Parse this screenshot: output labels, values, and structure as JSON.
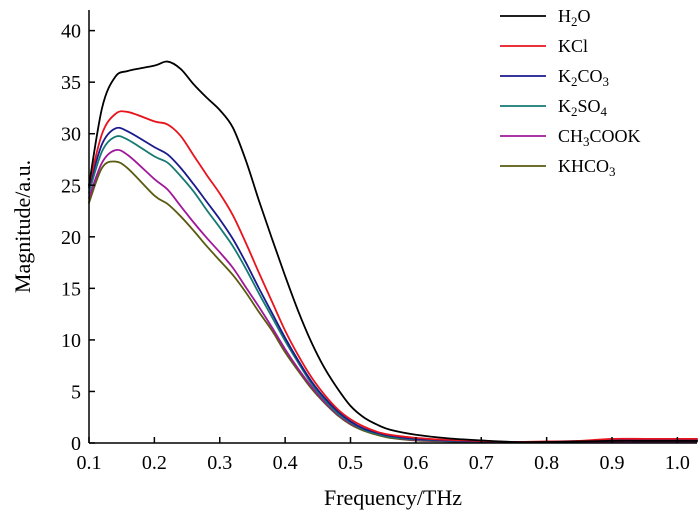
{
  "chart_data": {
    "type": "line",
    "title": "",
    "xlabel": "Frequency/THz",
    "ylabel": "Magnitude/a.u.",
    "xlim": [
      0.1,
      1.03
    ],
    "ylim": [
      0,
      42
    ],
    "xticks": [
      0.1,
      0.2,
      0.3,
      0.4,
      0.5,
      0.6,
      0.7,
      0.8,
      0.9,
      1.0
    ],
    "yticks": [
      0,
      5,
      10,
      15,
      20,
      25,
      30,
      35,
      40
    ],
    "xtick_labels": [
      "0.1",
      "0.2",
      "0.3",
      "0.4",
      "0.5",
      "0.6",
      "0.7",
      "0.8",
      "0.9",
      "1.0"
    ],
    "ytick_labels": [
      "0",
      "5",
      "10",
      "15",
      "20",
      "25",
      "30",
      "35",
      "40"
    ],
    "grid": false,
    "legend_position": "top-right",
    "x": [
      0.1,
      0.12,
      0.14,
      0.16,
      0.2,
      0.22,
      0.24,
      0.26,
      0.28,
      0.3,
      0.32,
      0.34,
      0.36,
      0.38,
      0.4,
      0.42,
      0.44,
      0.46,
      0.48,
      0.5,
      0.52,
      0.54,
      0.56,
      0.6,
      0.65,
      0.7,
      0.75,
      0.8,
      0.85,
      0.9,
      0.95,
      1.0,
      1.03
    ],
    "series": [
      {
        "name": "H2O",
        "legend": {
          "main": "H",
          "sub": "2",
          "rest": "O"
        },
        "color": "#000000",
        "values": [
          25,
          32.5,
          35.5,
          36.1,
          36.6,
          37,
          36.3,
          34.8,
          33.5,
          32.3,
          30.6,
          27.4,
          23.5,
          19.8,
          16.2,
          12.8,
          9.8,
          7.3,
          5.3,
          3.6,
          2.5,
          1.8,
          1.3,
          0.8,
          0.45,
          0.25,
          0.1,
          0.1,
          0.15,
          0.2,
          0.2,
          0.2,
          0.2
        ]
      },
      {
        "name": "KCl",
        "legend": {
          "main": "KCl",
          "sub": "",
          "rest": ""
        },
        "color": "#e8141c",
        "values": [
          25,
          30,
          31.9,
          32.1,
          31.2,
          30.9,
          29.8,
          27.9,
          26,
          24.2,
          22.1,
          19.4,
          16.5,
          13.7,
          10.9,
          8.5,
          6.4,
          4.7,
          3.3,
          2.3,
          1.6,
          1.1,
          0.8,
          0.5,
          0.3,
          0.2,
          0.1,
          0.15,
          0.2,
          0.4,
          0.4,
          0.4,
          0.4
        ]
      },
      {
        "name": "K2CO3",
        "legend": {
          "main": "K",
          "sub": "2",
          "rest": "CO",
          "sub2": "3"
        },
        "color": "#1a1a8c",
        "values": [
          24.8,
          29,
          30.5,
          30.2,
          28.7,
          28,
          26.7,
          25.1,
          23.4,
          21.7,
          19.8,
          17.5,
          15,
          12.6,
          10.2,
          8,
          6,
          4.4,
          3.1,
          2.1,
          1.4,
          1,
          0.7,
          0.4,
          0.25,
          0.15,
          0.1,
          0.12,
          0.18,
          0.3,
          0.3,
          0.3,
          0.3
        ]
      },
      {
        "name": "K2SO4",
        "legend": {
          "main": "K",
          "sub": "2",
          "rest": "SO",
          "sub2": "4"
        },
        "color": "#167a72",
        "values": [
          24.3,
          28.3,
          29.7,
          29.4,
          27.8,
          27.2,
          25.9,
          24.4,
          22.6,
          20.9,
          19.1,
          16.9,
          14.5,
          12.2,
          9.9,
          7.8,
          5.8,
          4.2,
          2.9,
          2,
          1.3,
          0.9,
          0.6,
          0.35,
          0.2,
          0.12,
          0.08,
          0.1,
          0.15,
          0.25,
          0.25,
          0.25,
          0.25
        ]
      },
      {
        "name": "CH3COOK",
        "legend": {
          "main": "CH",
          "sub": "3",
          "rest": "COOK"
        },
        "color": "#a0189a",
        "values": [
          23.8,
          27.2,
          28.4,
          27.9,
          25.6,
          24.6,
          23,
          21.4,
          19.9,
          18.5,
          17,
          15.1,
          13.2,
          11.2,
          9.1,
          7.2,
          5.5,
          4,
          2.8,
          1.9,
          1.3,
          0.9,
          0.6,
          0.3,
          0.18,
          0.1,
          0.05,
          0.05,
          0.1,
          0.15,
          0.15,
          0.15,
          0.15
        ]
      },
      {
        "name": "KHCO3",
        "legend": {
          "main": "KHCO",
          "sub": "3",
          "rest": ""
        },
        "color": "#5a5a10",
        "values": [
          23.3,
          26.7,
          27.3,
          26.6,
          24,
          23.2,
          22,
          20.6,
          19.1,
          17.7,
          16.3,
          14.6,
          12.7,
          10.9,
          8.8,
          7,
          5.3,
          3.9,
          2.7,
          1.8,
          1.2,
          0.8,
          0.5,
          0.25,
          0.15,
          0.08,
          0.04,
          0.04,
          0.08,
          0.12,
          0.12,
          0.12,
          0.12
        ]
      }
    ]
  }
}
